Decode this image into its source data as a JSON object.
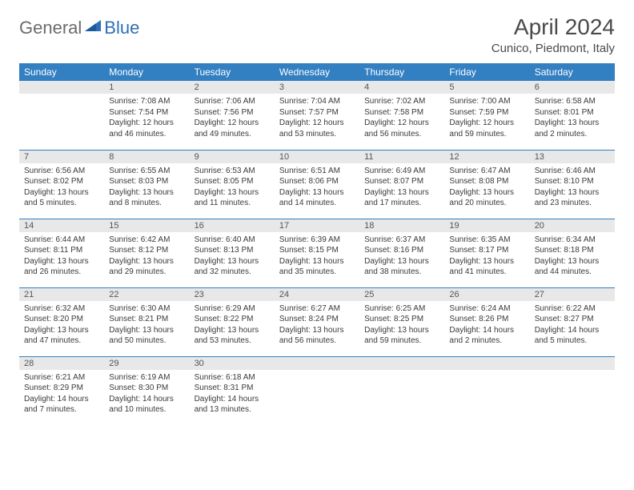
{
  "logo": {
    "text1": "General",
    "text2": "Blue"
  },
  "title": "April 2024",
  "location": "Cunico, Piedmont, Italy",
  "colors": {
    "header_bg": "#327fc2",
    "header_text": "#ffffff",
    "daynum_bg": "#e8e8e8",
    "border": "#327fc2",
    "logo_gray": "#6b6b6b",
    "logo_blue": "#2e6fb5"
  },
  "weekdays": [
    "Sunday",
    "Monday",
    "Tuesday",
    "Wednesday",
    "Thursday",
    "Friday",
    "Saturday"
  ],
  "weeks": [
    [
      {
        "n": "",
        "sr": "",
        "ss": "",
        "dl": ""
      },
      {
        "n": "1",
        "sr": "Sunrise: 7:08 AM",
        "ss": "Sunset: 7:54 PM",
        "dl": "Daylight: 12 hours and 46 minutes."
      },
      {
        "n": "2",
        "sr": "Sunrise: 7:06 AM",
        "ss": "Sunset: 7:56 PM",
        "dl": "Daylight: 12 hours and 49 minutes."
      },
      {
        "n": "3",
        "sr": "Sunrise: 7:04 AM",
        "ss": "Sunset: 7:57 PM",
        "dl": "Daylight: 12 hours and 53 minutes."
      },
      {
        "n": "4",
        "sr": "Sunrise: 7:02 AM",
        "ss": "Sunset: 7:58 PM",
        "dl": "Daylight: 12 hours and 56 minutes."
      },
      {
        "n": "5",
        "sr": "Sunrise: 7:00 AM",
        "ss": "Sunset: 7:59 PM",
        "dl": "Daylight: 12 hours and 59 minutes."
      },
      {
        "n": "6",
        "sr": "Sunrise: 6:58 AM",
        "ss": "Sunset: 8:01 PM",
        "dl": "Daylight: 13 hours and 2 minutes."
      }
    ],
    [
      {
        "n": "7",
        "sr": "Sunrise: 6:56 AM",
        "ss": "Sunset: 8:02 PM",
        "dl": "Daylight: 13 hours and 5 minutes."
      },
      {
        "n": "8",
        "sr": "Sunrise: 6:55 AM",
        "ss": "Sunset: 8:03 PM",
        "dl": "Daylight: 13 hours and 8 minutes."
      },
      {
        "n": "9",
        "sr": "Sunrise: 6:53 AM",
        "ss": "Sunset: 8:05 PM",
        "dl": "Daylight: 13 hours and 11 minutes."
      },
      {
        "n": "10",
        "sr": "Sunrise: 6:51 AM",
        "ss": "Sunset: 8:06 PM",
        "dl": "Daylight: 13 hours and 14 minutes."
      },
      {
        "n": "11",
        "sr": "Sunrise: 6:49 AM",
        "ss": "Sunset: 8:07 PM",
        "dl": "Daylight: 13 hours and 17 minutes."
      },
      {
        "n": "12",
        "sr": "Sunrise: 6:47 AM",
        "ss": "Sunset: 8:08 PM",
        "dl": "Daylight: 13 hours and 20 minutes."
      },
      {
        "n": "13",
        "sr": "Sunrise: 6:46 AM",
        "ss": "Sunset: 8:10 PM",
        "dl": "Daylight: 13 hours and 23 minutes."
      }
    ],
    [
      {
        "n": "14",
        "sr": "Sunrise: 6:44 AM",
        "ss": "Sunset: 8:11 PM",
        "dl": "Daylight: 13 hours and 26 minutes."
      },
      {
        "n": "15",
        "sr": "Sunrise: 6:42 AM",
        "ss": "Sunset: 8:12 PM",
        "dl": "Daylight: 13 hours and 29 minutes."
      },
      {
        "n": "16",
        "sr": "Sunrise: 6:40 AM",
        "ss": "Sunset: 8:13 PM",
        "dl": "Daylight: 13 hours and 32 minutes."
      },
      {
        "n": "17",
        "sr": "Sunrise: 6:39 AM",
        "ss": "Sunset: 8:15 PM",
        "dl": "Daylight: 13 hours and 35 minutes."
      },
      {
        "n": "18",
        "sr": "Sunrise: 6:37 AM",
        "ss": "Sunset: 8:16 PM",
        "dl": "Daylight: 13 hours and 38 minutes."
      },
      {
        "n": "19",
        "sr": "Sunrise: 6:35 AM",
        "ss": "Sunset: 8:17 PM",
        "dl": "Daylight: 13 hours and 41 minutes."
      },
      {
        "n": "20",
        "sr": "Sunrise: 6:34 AM",
        "ss": "Sunset: 8:18 PM",
        "dl": "Daylight: 13 hours and 44 minutes."
      }
    ],
    [
      {
        "n": "21",
        "sr": "Sunrise: 6:32 AM",
        "ss": "Sunset: 8:20 PM",
        "dl": "Daylight: 13 hours and 47 minutes."
      },
      {
        "n": "22",
        "sr": "Sunrise: 6:30 AM",
        "ss": "Sunset: 8:21 PM",
        "dl": "Daylight: 13 hours and 50 minutes."
      },
      {
        "n": "23",
        "sr": "Sunrise: 6:29 AM",
        "ss": "Sunset: 8:22 PM",
        "dl": "Daylight: 13 hours and 53 minutes."
      },
      {
        "n": "24",
        "sr": "Sunrise: 6:27 AM",
        "ss": "Sunset: 8:24 PM",
        "dl": "Daylight: 13 hours and 56 minutes."
      },
      {
        "n": "25",
        "sr": "Sunrise: 6:25 AM",
        "ss": "Sunset: 8:25 PM",
        "dl": "Daylight: 13 hours and 59 minutes."
      },
      {
        "n": "26",
        "sr": "Sunrise: 6:24 AM",
        "ss": "Sunset: 8:26 PM",
        "dl": "Daylight: 14 hours and 2 minutes."
      },
      {
        "n": "27",
        "sr": "Sunrise: 6:22 AM",
        "ss": "Sunset: 8:27 PM",
        "dl": "Daylight: 14 hours and 5 minutes."
      }
    ],
    [
      {
        "n": "28",
        "sr": "Sunrise: 6:21 AM",
        "ss": "Sunset: 8:29 PM",
        "dl": "Daylight: 14 hours and 7 minutes."
      },
      {
        "n": "29",
        "sr": "Sunrise: 6:19 AM",
        "ss": "Sunset: 8:30 PM",
        "dl": "Daylight: 14 hours and 10 minutes."
      },
      {
        "n": "30",
        "sr": "Sunrise: 6:18 AM",
        "ss": "Sunset: 8:31 PM",
        "dl": "Daylight: 14 hours and 13 minutes."
      },
      {
        "n": "",
        "sr": "",
        "ss": "",
        "dl": ""
      },
      {
        "n": "",
        "sr": "",
        "ss": "",
        "dl": ""
      },
      {
        "n": "",
        "sr": "",
        "ss": "",
        "dl": ""
      },
      {
        "n": "",
        "sr": "",
        "ss": "",
        "dl": ""
      }
    ]
  ]
}
